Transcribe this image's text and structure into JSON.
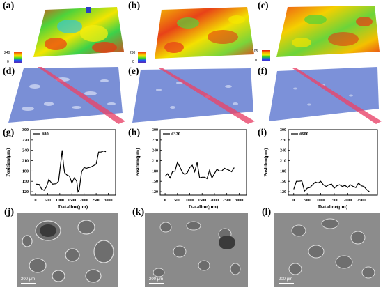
{
  "labels": {
    "a": "(a)",
    "b": "(b)",
    "c": "(c)",
    "d": "(d)",
    "e": "(e)",
    "f": "(f)",
    "g": "(g)",
    "h": "(h)",
    "i": "(i)",
    "j": "(j)",
    "k": "(k)",
    "l": "(l)"
  },
  "colorbars": [
    {
      "max": "240",
      "min": "0"
    },
    {
      "max": "230",
      "min": "0"
    },
    {
      "max": "105",
      "min": "0"
    }
  ],
  "scalebars": {
    "j": "200 μm",
    "k": "200 μm",
    "l": "200 μm"
  },
  "chart_data": [
    {
      "type": "line",
      "legend": "#80",
      "xlabel": "Dataline(μm)",
      "ylabel": "Position(μm)",
      "xticks": [
        "0",
        "500",
        "1000",
        "1500",
        "2000",
        "2500",
        "3000"
      ],
      "yticks": [
        "120",
        "150",
        "180",
        "210",
        "240",
        "270",
        "300"
      ],
      "xlim": [
        -200,
        3300
      ],
      "ylim": [
        110,
        300
      ],
      "x": [
        0,
        150,
        250,
        350,
        450,
        550,
        700,
        850,
        950,
        1050,
        1100,
        1150,
        1200,
        1300,
        1400,
        1500,
        1600,
        1700,
        1750,
        1800,
        1900,
        2000,
        2100,
        2300,
        2500,
        2600,
        2700,
        2800,
        2900
      ],
      "y": [
        142,
        141,
        128,
        124,
        134,
        155,
        142,
        143,
        150,
        210,
        240,
        200,
        175,
        168,
        165,
        145,
        160,
        150,
        120,
        125,
        178,
        190,
        188,
        192,
        200,
        235,
        235,
        238,
        236
      ]
    },
    {
      "type": "line",
      "legend": "#320",
      "xlabel": "Dataline(μm)",
      "ylabel": "Position(μm)",
      "xticks": [
        "0",
        "500",
        "1000",
        "1500",
        "2000",
        "2500",
        "3000"
      ],
      "yticks": [
        "120",
        "150",
        "180",
        "210",
        "240",
        "270",
        "300"
      ],
      "xlim": [
        -200,
        3300
      ],
      "ylim": [
        110,
        300
      ],
      "x": [
        0,
        100,
        200,
        300,
        400,
        500,
        600,
        700,
        800,
        900,
        1000,
        1100,
        1200,
        1300,
        1400,
        1500,
        1600,
        1700,
        1800,
        1900,
        2000,
        2100,
        2200,
        2300,
        2400,
        2500,
        2600,
        2700,
        2800
      ],
      "y": [
        165,
        172,
        160,
        178,
        180,
        205,
        192,
        176,
        170,
        175,
        190,
        197,
        178,
        205,
        160,
        162,
        162,
        158,
        182,
        160,
        172,
        185,
        180,
        180,
        188,
        185,
        182,
        178,
        190
      ]
    },
    {
      "type": "line",
      "legend": "#600",
      "xlabel": "Dataline(μm)",
      "ylabel": "Position(μm)",
      "xticks": [
        "0",
        "500",
        "1000",
        "1500",
        "2000",
        "2500"
      ],
      "yticks": [
        "120",
        "150",
        "180",
        "210",
        "240",
        "270",
        "300"
      ],
      "xlim": [
        -200,
        3100
      ],
      "ylim": [
        110,
        300
      ],
      "x": [
        0,
        100,
        200,
        300,
        400,
        500,
        600,
        700,
        800,
        900,
        1000,
        1100,
        1200,
        1300,
        1400,
        1500,
        1600,
        1700,
        1800,
        1900,
        2000,
        2100,
        2200,
        2300,
        2400,
        2500,
        2600,
        2700,
        2800
      ],
      "y": [
        127,
        150,
        150,
        151,
        122,
        130,
        132,
        140,
        148,
        145,
        150,
        140,
        135,
        140,
        142,
        130,
        137,
        140,
        135,
        138,
        132,
        140,
        135,
        132,
        145,
        137,
        135,
        126,
        120
      ]
    }
  ]
}
